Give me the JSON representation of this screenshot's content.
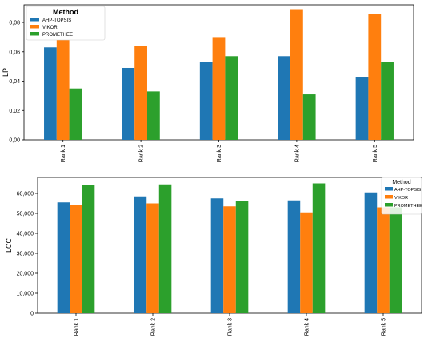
{
  "chart_data": [
    {
      "type": "bar",
      "categories": [
        "Rank 1",
        "Rank 2",
        "Rank 3",
        "Rank 4",
        "Rank 5"
      ],
      "series": [
        {
          "name": "AHP-TOPSIS",
          "color": "#1f77b4",
          "values": [
            0.063,
            0.049,
            0.053,
            0.057,
            0.043
          ]
        },
        {
          "name": "VIKOR",
          "color": "#ff7f0e",
          "values": [
            0.068,
            0.064,
            0.07,
            0.089,
            0.086
          ]
        },
        {
          "name": "PROMETHEE",
          "color": "#2ca02c",
          "values": [
            0.035,
            0.033,
            0.057,
            0.031,
            0.053
          ]
        }
      ],
      "ylabel": "LP",
      "xlabel": "",
      "ylim": [
        0,
        0.092
      ],
      "yticks": [
        0,
        0.02,
        0.04,
        0.06,
        0.08
      ],
      "ytick_labels": [
        "0,00",
        "0,02",
        "0,04",
        "0,06",
        "0,08"
      ],
      "legend": {
        "title": "Method",
        "position": "top-left"
      },
      "grid": false
    },
    {
      "type": "bar",
      "categories": [
        "Rank 1",
        "Rank 2",
        "Rank 3",
        "Rank 4",
        "Rank 5"
      ],
      "series": [
        {
          "name": "AHP-TOPSIS",
          "color": "#1f77b4",
          "values": [
            55500,
            58500,
            57500,
            56500,
            60500
          ]
        },
        {
          "name": "VIKOR",
          "color": "#ff7f0e",
          "values": [
            54000,
            55000,
            53500,
            50500,
            53000
          ]
        },
        {
          "name": "PROMETHEE",
          "color": "#2ca02c",
          "values": [
            64000,
            64500,
            56000,
            65000,
            53000
          ]
        }
      ],
      "ylabel": "LCC",
      "xlabel": "",
      "ylim": [
        0,
        68000
      ],
      "yticks": [
        0,
        10000,
        20000,
        30000,
        40000,
        50000,
        60000
      ],
      "ytick_labels": [
        "0",
        "10,000",
        "20,000",
        "30,000",
        "40,000",
        "50,000",
        "60,000"
      ],
      "legend": {
        "title": "Method",
        "position": "top-right"
      },
      "grid": false
    }
  ]
}
